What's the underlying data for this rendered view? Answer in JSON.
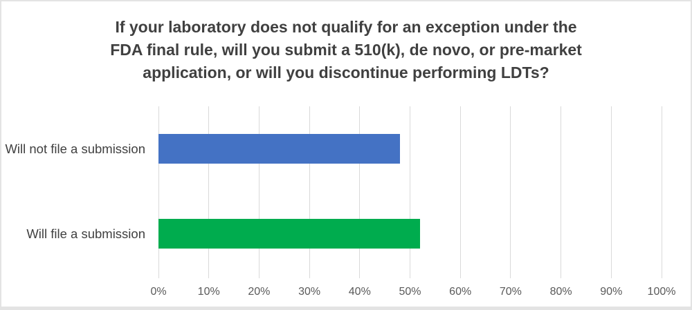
{
  "chart_data": {
    "type": "bar",
    "orientation": "horizontal",
    "title": "If your laboratory does not qualify for an exception under the FDA final rule, will you submit a 510(k), de novo, or pre-market application, or will you discontinue performing LDTs?",
    "title_lines": [
      "If your laboratory does not qualify for an exception under the",
      "FDA final rule, will you submit a 510(k), de novo, or pre-market",
      "application, or will you discontinue performing LDTs?"
    ],
    "categories": [
      "Will not file a submission",
      "Will file a submission"
    ],
    "values": [
      48,
      52
    ],
    "value_unit": "%",
    "xlabel": "",
    "ylabel": "",
    "xlim": [
      0,
      100
    ],
    "x_ticks": [
      "0%",
      "10%",
      "20%",
      "30%",
      "40%",
      "50%",
      "60%",
      "70%",
      "80%",
      "90%",
      "100%"
    ],
    "grid": "vertical",
    "legend": "none",
    "bar_colors": [
      "#4472C4",
      "#00AC4E"
    ]
  },
  "colors": {
    "background": "#FFFFFF",
    "frame_border": "#E3E3E3",
    "gridline": "#D9D9D9",
    "title_text": "#404040",
    "category_text": "#404040",
    "tick_text": "#595959",
    "bar_blue": "#4472C4",
    "bar_green": "#00AC4E"
  }
}
